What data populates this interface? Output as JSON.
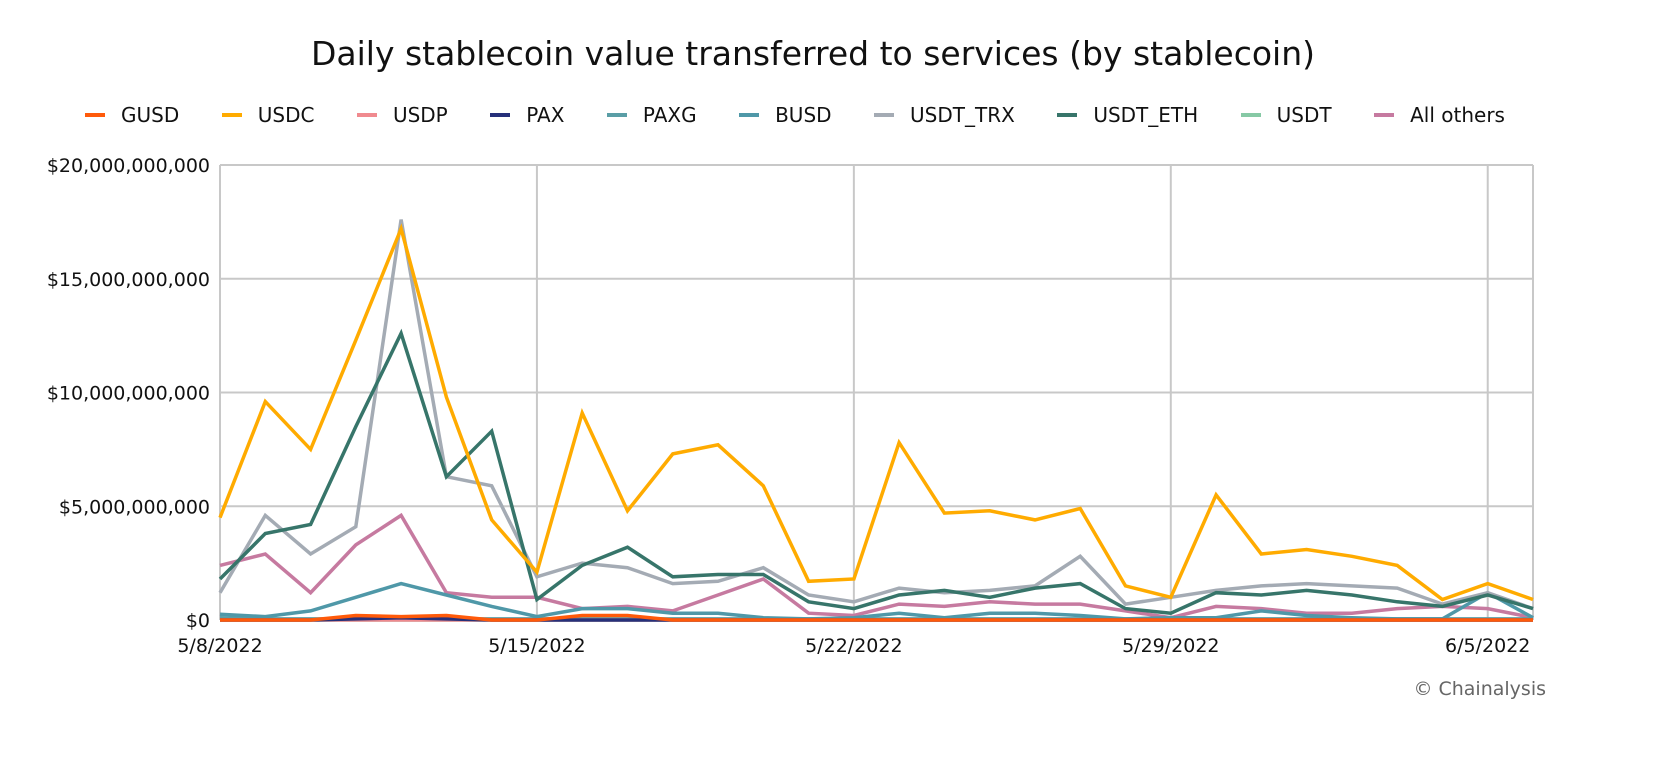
{
  "chart_data": {
    "type": "line",
    "title": "Daily stablecoin value transferred to services (by stablecoin)",
    "xlabel": "",
    "ylabel": "",
    "x": [
      "5/8/2022",
      "5/9/2022",
      "5/10/2022",
      "5/11/2022",
      "5/12/2022",
      "5/13/2022",
      "5/14/2022",
      "5/15/2022",
      "5/16/2022",
      "5/17/2022",
      "5/18/2022",
      "5/19/2022",
      "5/20/2022",
      "5/21/2022",
      "5/22/2022",
      "5/23/2022",
      "5/24/2022",
      "5/25/2022",
      "5/26/2022",
      "5/27/2022",
      "5/28/2022",
      "5/29/2022",
      "5/30/2022",
      "5/31/2022",
      "6/1/2022",
      "6/2/2022",
      "6/3/2022",
      "6/4/2022",
      "6/5/2022",
      "6/6/2022"
    ],
    "x_tick_labels": [
      "5/8/2022",
      "5/15/2022",
      "5/22/2022",
      "5/29/2022",
      "6/5/2022"
    ],
    "y_tick_labels": [
      "$0",
      "$5,000,000,000",
      "$10,000,000,000",
      "$15,000,000,000",
      "$20,000,000,000"
    ],
    "ylim": [
      0,
      20000000000
    ],
    "grid": true,
    "legend_position": "top",
    "units": "billions USD",
    "series": [
      {
        "name": "GUSD",
        "color": "#ff5a0a",
        "values": [
          0,
          0,
          0,
          0.2,
          0.15,
          0.2,
          0,
          0,
          0.2,
          0.2,
          0,
          0,
          0,
          0,
          0,
          0,
          0,
          0,
          0,
          0,
          0,
          0,
          0,
          0,
          0,
          0,
          0,
          0,
          0,
          0
        ]
      },
      {
        "name": "USDC",
        "color": "#ffab00",
        "values": [
          4.5,
          9.6,
          7.5,
          12.3,
          17.2,
          9.8,
          4.4,
          2.1,
          9.1,
          4.8,
          7.3,
          7.7,
          5.9,
          1.7,
          1.8,
          7.8,
          4.7,
          4.8,
          4.4,
          4.9,
          1.5,
          1.0,
          5.5,
          2.9,
          3.1,
          2.8,
          2.4,
          0.9,
          1.6,
          0.9
        ]
      },
      {
        "name": "USDP",
        "color": "#f08a8f",
        "values": [
          0,
          0,
          0,
          0,
          0,
          0,
          0,
          0,
          0,
          0,
          0,
          0,
          0,
          0,
          0,
          0,
          0,
          0,
          0,
          0,
          0,
          0,
          0,
          0,
          0,
          0,
          0,
          0,
          0,
          0
        ]
      },
      {
        "name": "PAX",
        "color": "#26307a",
        "values": [
          0,
          0,
          0,
          0.05,
          0.1,
          0.05,
          0,
          0,
          0,
          0,
          0,
          0,
          0,
          0,
          0,
          0,
          0,
          0,
          0,
          0,
          0,
          0,
          0,
          0,
          0,
          0,
          0,
          0,
          0,
          0
        ]
      },
      {
        "name": "PAXG",
        "color": "#5a9ea6",
        "values": [
          0.1,
          0.05,
          0.05,
          0.05,
          0.05,
          0.05,
          0.05,
          0.05,
          0.05,
          0.05,
          0.05,
          0.05,
          0.05,
          0.05,
          0.05,
          0.05,
          0.05,
          0.05,
          0.05,
          0.05,
          0.05,
          0.05,
          0.05,
          0.05,
          0.05,
          0.05,
          0.05,
          0.05,
          0.05,
          0.05
        ]
      },
      {
        "name": "BUSD",
        "color": "#4f98a8",
        "values": [
          0.25,
          0.15,
          0.4,
          1.0,
          1.6,
          1.1,
          0.6,
          0.15,
          0.5,
          0.5,
          0.3,
          0.3,
          0.1,
          0.05,
          0.1,
          0.3,
          0.1,
          0.3,
          0.3,
          0.2,
          0.05,
          0.1,
          0.1,
          0.4,
          0.2,
          0.1,
          0.05,
          0.05,
          1.2,
          0.1
        ]
      },
      {
        "name": "USDT_TRX",
        "color": "#a4abb4",
        "values": [
          1.2,
          4.6,
          2.9,
          4.1,
          17.6,
          6.3,
          5.9,
          1.9,
          2.5,
          2.3,
          1.6,
          1.7,
          2.3,
          1.1,
          0.8,
          1.4,
          1.2,
          1.3,
          1.5,
          2.8,
          0.7,
          1.0,
          1.3,
          1.5,
          1.6,
          1.5,
          1.4,
          0.7,
          1.2,
          0.5
        ]
      },
      {
        "name": "USDT_ETH",
        "color": "#37756a",
        "values": [
          1.8,
          3.8,
          4.2,
          8.5,
          12.6,
          6.3,
          8.3,
          0.9,
          2.4,
          3.2,
          1.9,
          2.0,
          2.0,
          0.8,
          0.5,
          1.1,
          1.3,
          1.0,
          1.4,
          1.6,
          0.5,
          0.3,
          1.2,
          1.1,
          1.3,
          1.1,
          0.8,
          0.6,
          1.1,
          0.5
        ]
      },
      {
        "name": "USDT",
        "color": "#86c9a5",
        "values": [
          0,
          0,
          0,
          0,
          0,
          0,
          0,
          0,
          0,
          0,
          0,
          0,
          0,
          0,
          0,
          0,
          0,
          0,
          0,
          0,
          0,
          0,
          0,
          0,
          0,
          0,
          0,
          0,
          0,
          0
        ]
      },
      {
        "name": "All others",
        "color": "#c67aa0",
        "values": [
          2.4,
          2.9,
          1.2,
          3.3,
          4.6,
          1.2,
          1.0,
          1.0,
          0.5,
          0.6,
          0.4,
          1.1,
          1.8,
          0.3,
          0.2,
          0.7,
          0.6,
          0.8,
          0.7,
          0.7,
          0.4,
          0.1,
          0.6,
          0.5,
          0.3,
          0.3,
          0.5,
          0.6,
          0.5,
          0.1
        ]
      }
    ]
  },
  "copyright": "© Chainalysis"
}
